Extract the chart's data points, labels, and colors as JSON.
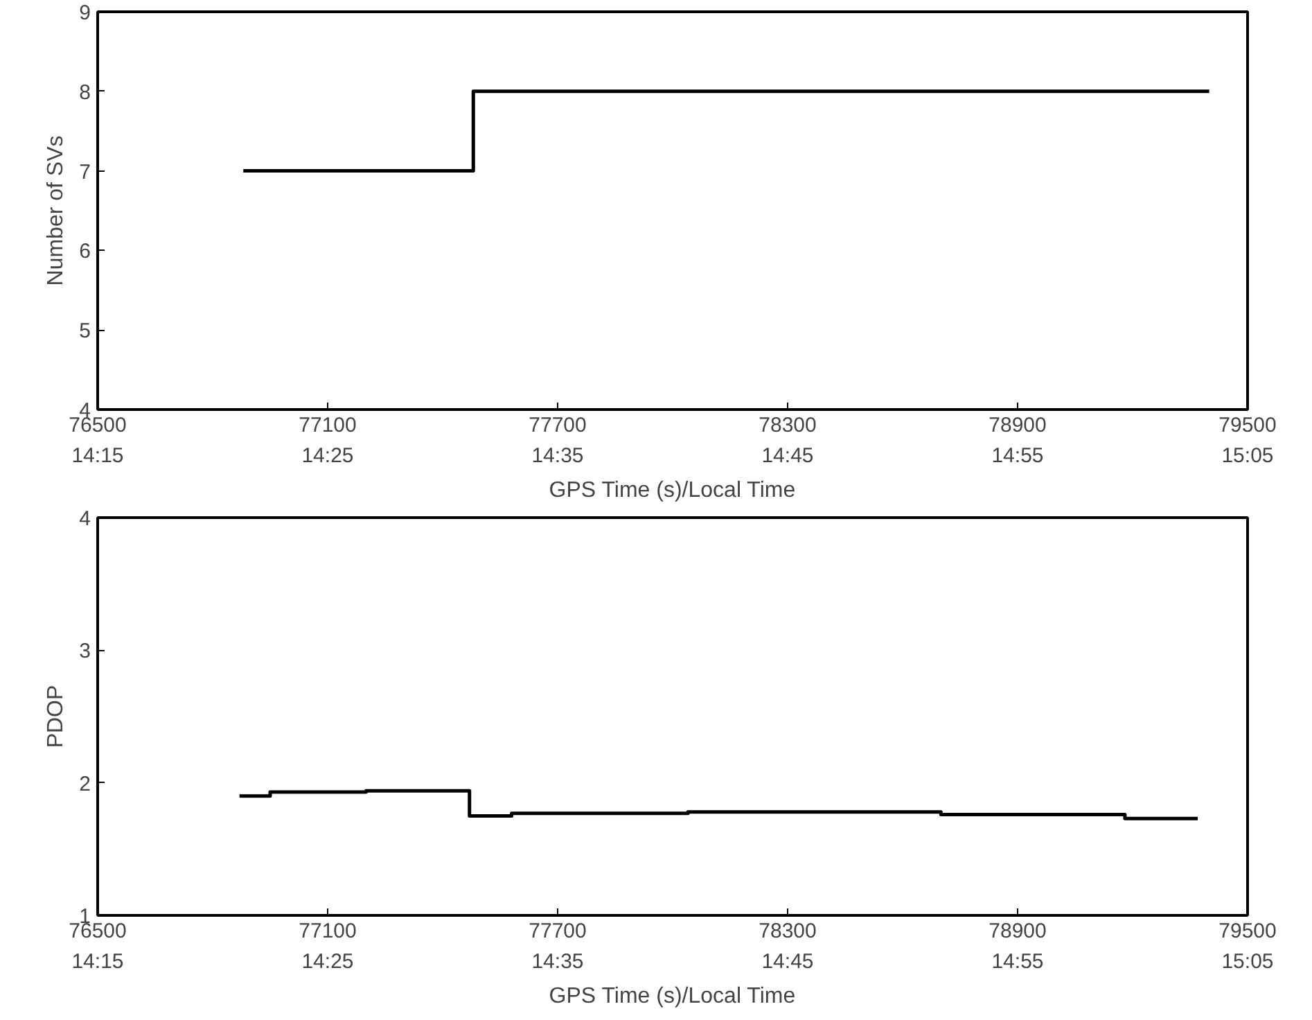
{
  "chart_data": [
    {
      "type": "step",
      "xlabel": "GPS Time (s)/Local Time",
      "ylabel": "Number of SVs",
      "xlim": [
        76500,
        79500
      ],
      "ylim": [
        4,
        9
      ],
      "xticks": [
        76500,
        77100,
        77700,
        78300,
        78900,
        79500
      ],
      "x2lim": [
        14.25,
        15.083333
      ],
      "x2ticks": [
        {
          "value": 14.25,
          "label": "14:15"
        },
        {
          "value": 14.416667,
          "label": "14:25"
        },
        {
          "value": 14.583333,
          "label": "14:35"
        },
        {
          "value": 14.75,
          "label": "14:45"
        },
        {
          "value": 14.916667,
          "label": "14:55"
        },
        {
          "value": 15.083333,
          "label": "15:05"
        }
      ],
      "yticks": [
        4,
        5,
        6,
        7,
        8,
        9
      ],
      "grid": false,
      "series": [
        {
          "color": "#000000",
          "x": [
            76880,
            77480,
            79400
          ],
          "values": [
            7,
            8,
            8
          ]
        }
      ]
    },
    {
      "type": "step",
      "xlabel": "GPS Time (s)/Local Time",
      "ylabel": "PDOP",
      "xlim": [
        76500,
        79500
      ],
      "ylim": [
        1,
        4
      ],
      "xticks": [
        76500,
        77100,
        77700,
        78300,
        78900,
        79500
      ],
      "x2lim": [
        14.25,
        15.083333
      ],
      "x2ticks": [
        {
          "value": 14.25,
          "label": "14:15"
        },
        {
          "value": 14.416667,
          "label": "14:25"
        },
        {
          "value": 14.583333,
          "label": "14:35"
        },
        {
          "value": 14.75,
          "label": "14:45"
        },
        {
          "value": 14.916667,
          "label": "14:55"
        },
        {
          "value": 15.083333,
          "label": "15:05"
        }
      ],
      "yticks": [
        1,
        2,
        3,
        4
      ],
      "grid": false,
      "series": [
        {
          "color": "#000000",
          "x": [
            76870,
            76950,
            77200,
            77470,
            77580,
            78040,
            78700,
            79180,
            79370
          ],
          "values": [
            1.9,
            1.93,
            1.94,
            1.75,
            1.77,
            1.78,
            1.76,
            1.73,
            1.73
          ]
        }
      ]
    }
  ]
}
